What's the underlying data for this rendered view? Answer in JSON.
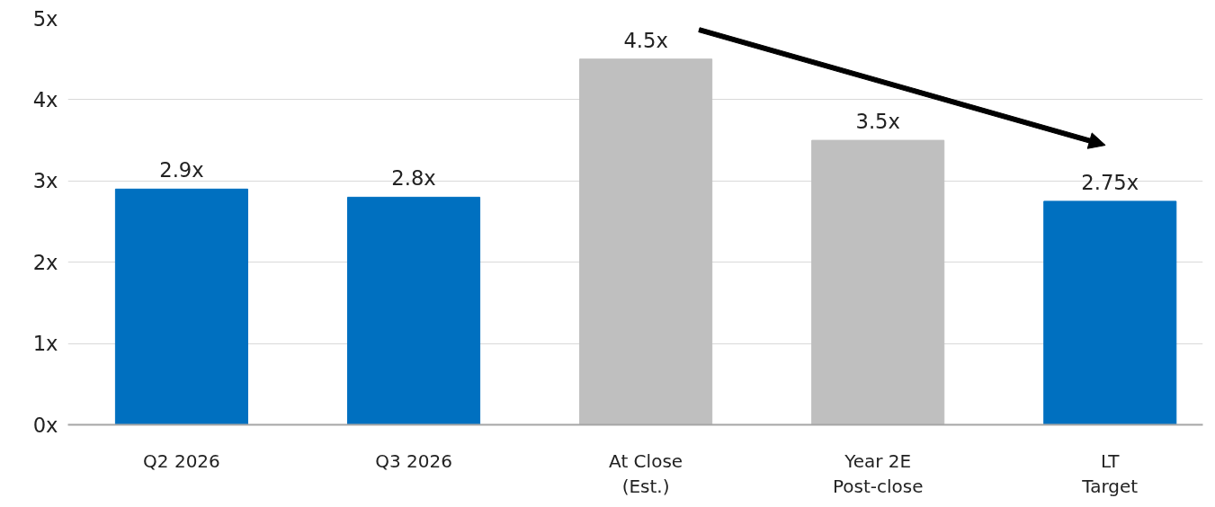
{
  "chart_data": {
    "type": "bar",
    "categories": [
      "Q2 2026",
      "Q3 2026",
      "At Close\n(Est.)",
      "Year 2E\nPost-close",
      "LT\nTarget"
    ],
    "values": [
      2.9,
      2.8,
      4.5,
      3.5,
      2.75
    ],
    "colors": [
      "#0070c0",
      "#0070c0",
      "#bfbfbf",
      "#bfbfbf",
      "#0070c0"
    ],
    "value_labels": [
      "2.9x",
      "2.8x",
      "4.5x",
      "3.5x",
      "2.75x"
    ],
    "ylim": [
      0,
      5
    ],
    "yticks": [
      {
        "value": 0,
        "label": "0x"
      },
      {
        "value": 1,
        "label": "1x"
      },
      {
        "value": 2,
        "label": "2x"
      },
      {
        "value": 3,
        "label": "3x"
      },
      {
        "value": 4,
        "label": "4x"
      },
      {
        "value": 5,
        "label": "5x"
      }
    ],
    "grid": "y"
  }
}
